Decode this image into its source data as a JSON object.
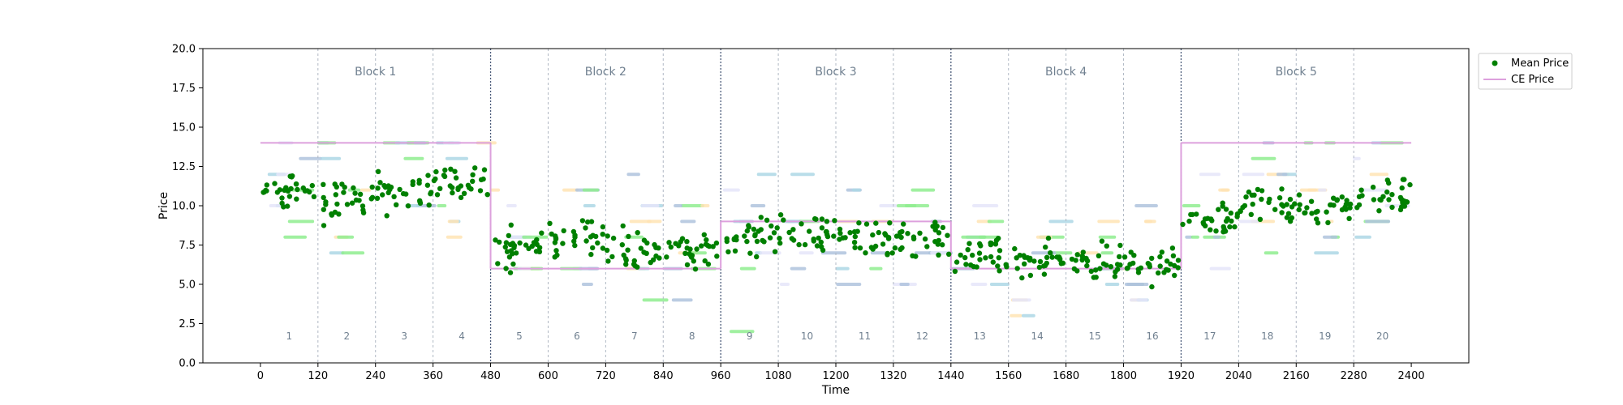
{
  "chart_data": {
    "type": "scatter",
    "xlabel": "Time",
    "ylabel": "Price",
    "xlim": [
      -120,
      2520
    ],
    "ylim": [
      0,
      20
    ],
    "x_ticks": [
      0,
      120,
      240,
      360,
      480,
      600,
      720,
      840,
      960,
      1080,
      1200,
      1320,
      1440,
      1560,
      1680,
      1800,
      1920,
      2040,
      2160,
      2280,
      2400
    ],
    "y_ticks": [
      0.0,
      2.5,
      5.0,
      7.5,
      10.0,
      12.5,
      15.0,
      17.5,
      20.0
    ],
    "y_tick_labels": [
      "0.0",
      "2.5",
      "5.0",
      "7.5",
      "10.0",
      "12.5",
      "15.0",
      "17.5",
      "20.0"
    ],
    "grid": false,
    "legend": {
      "placement": "outside-top-right",
      "entries": [
        {
          "label": "Mean Price",
          "kind": "marker",
          "color": "#008000"
        },
        {
          "label": "CE Price",
          "kind": "line",
          "color": "#DDA0DD"
        }
      ]
    },
    "blocks": [
      {
        "label": "Block 1",
        "start": 0,
        "end": 480
      },
      {
        "label": "Block 2",
        "start": 480,
        "end": 960
      },
      {
        "label": "Block 3",
        "start": 960,
        "end": 1440
      },
      {
        "label": "Block 4",
        "start": 1440,
        "end": 1920
      },
      {
        "label": "Block 5",
        "start": 1920,
        "end": 2400
      }
    ],
    "periods": [
      "1",
      "2",
      "3",
      "4",
      "5",
      "6",
      "7",
      "8",
      "9",
      "10",
      "11",
      "12",
      "13",
      "14",
      "15",
      "16",
      "17",
      "18",
      "19",
      "20"
    ],
    "period_length": 120,
    "period_label_y": 1.5,
    "block_label_y": 18.3,
    "ce_price": [
      {
        "start": 0,
        "end": 480,
        "value": 14
      },
      {
        "start": 480,
        "end": 960,
        "value": 6
      },
      {
        "start": 960,
        "end": 1440,
        "value": 9
      },
      {
        "start": 1440,
        "end": 1920,
        "value": 6
      },
      {
        "start": 1920,
        "end": 2400,
        "value": 14
      }
    ],
    "mean_price_by_period": [
      11.0,
      10.3,
      11.0,
      11.3,
      7.3,
      8.0,
      7.2,
      7.1,
      8.2,
      8.2,
      7.9,
      7.8,
      6.7,
      6.4,
      6.3,
      6.2,
      9.2,
      10.2,
      10.0,
      10.6
    ],
    "mean_price_color": "#008000",
    "ce_color": "#DDA0DD",
    "bid_ask_colors": [
      "#B0C4DE",
      "#ADD8E6",
      "#FFE4B5",
      "#90EE90",
      "#E6E6FA"
    ]
  }
}
